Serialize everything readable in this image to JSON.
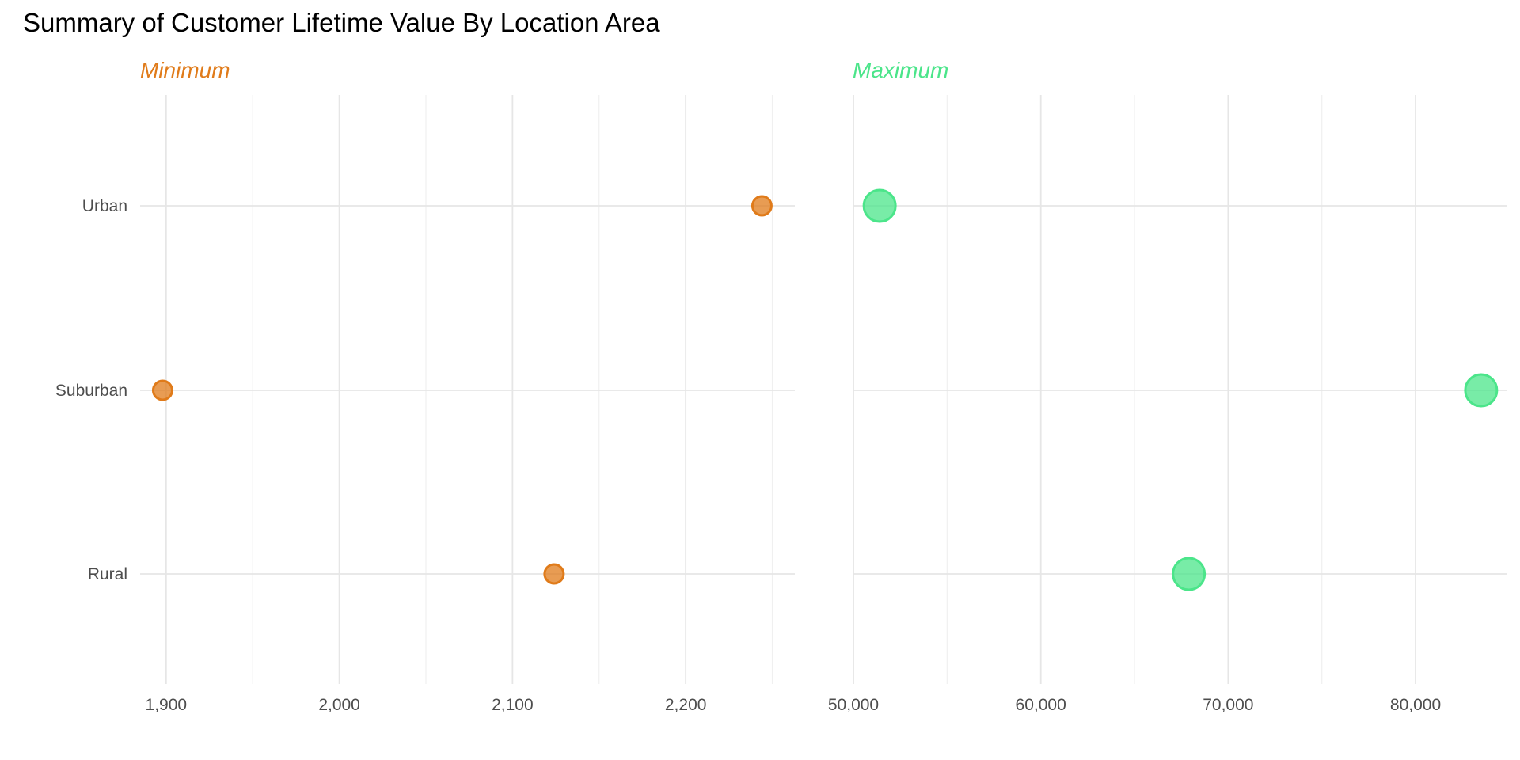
{
  "chart_data": {
    "type": "scatter",
    "title": "Summary of Customer Lifetime Value By Location Area",
    "categories": [
      "Urban",
      "Suburban",
      "Rural"
    ],
    "panels": [
      {
        "name": "Minimum",
        "color": "#E07B1A",
        "xlim": [
          1885,
          2263
        ],
        "xticks": [
          1900,
          2000,
          2100,
          2200
        ],
        "xtick_labels": [
          "1,900",
          "2,000",
          "2,100",
          "2,200"
        ],
        "xminor": [
          1950,
          2050,
          2150,
          2250
        ],
        "values": [
          2244,
          1898,
          2124
        ],
        "point_size": "small"
      },
      {
        "name": "Maximum",
        "color": "#4BE58A",
        "xlim": [
          50000,
          84900
        ],
        "xticks": [
          50000,
          60000,
          70000,
          80000
        ],
        "xtick_labels": [
          "50,000",
          "60,000",
          "70,000",
          "80,000"
        ],
        "xminor": [
          55000,
          65000,
          75000
        ],
        "values": [
          51400,
          83500,
          67900
        ],
        "point_size": "large"
      }
    ],
    "grid": true,
    "legend": "none"
  }
}
